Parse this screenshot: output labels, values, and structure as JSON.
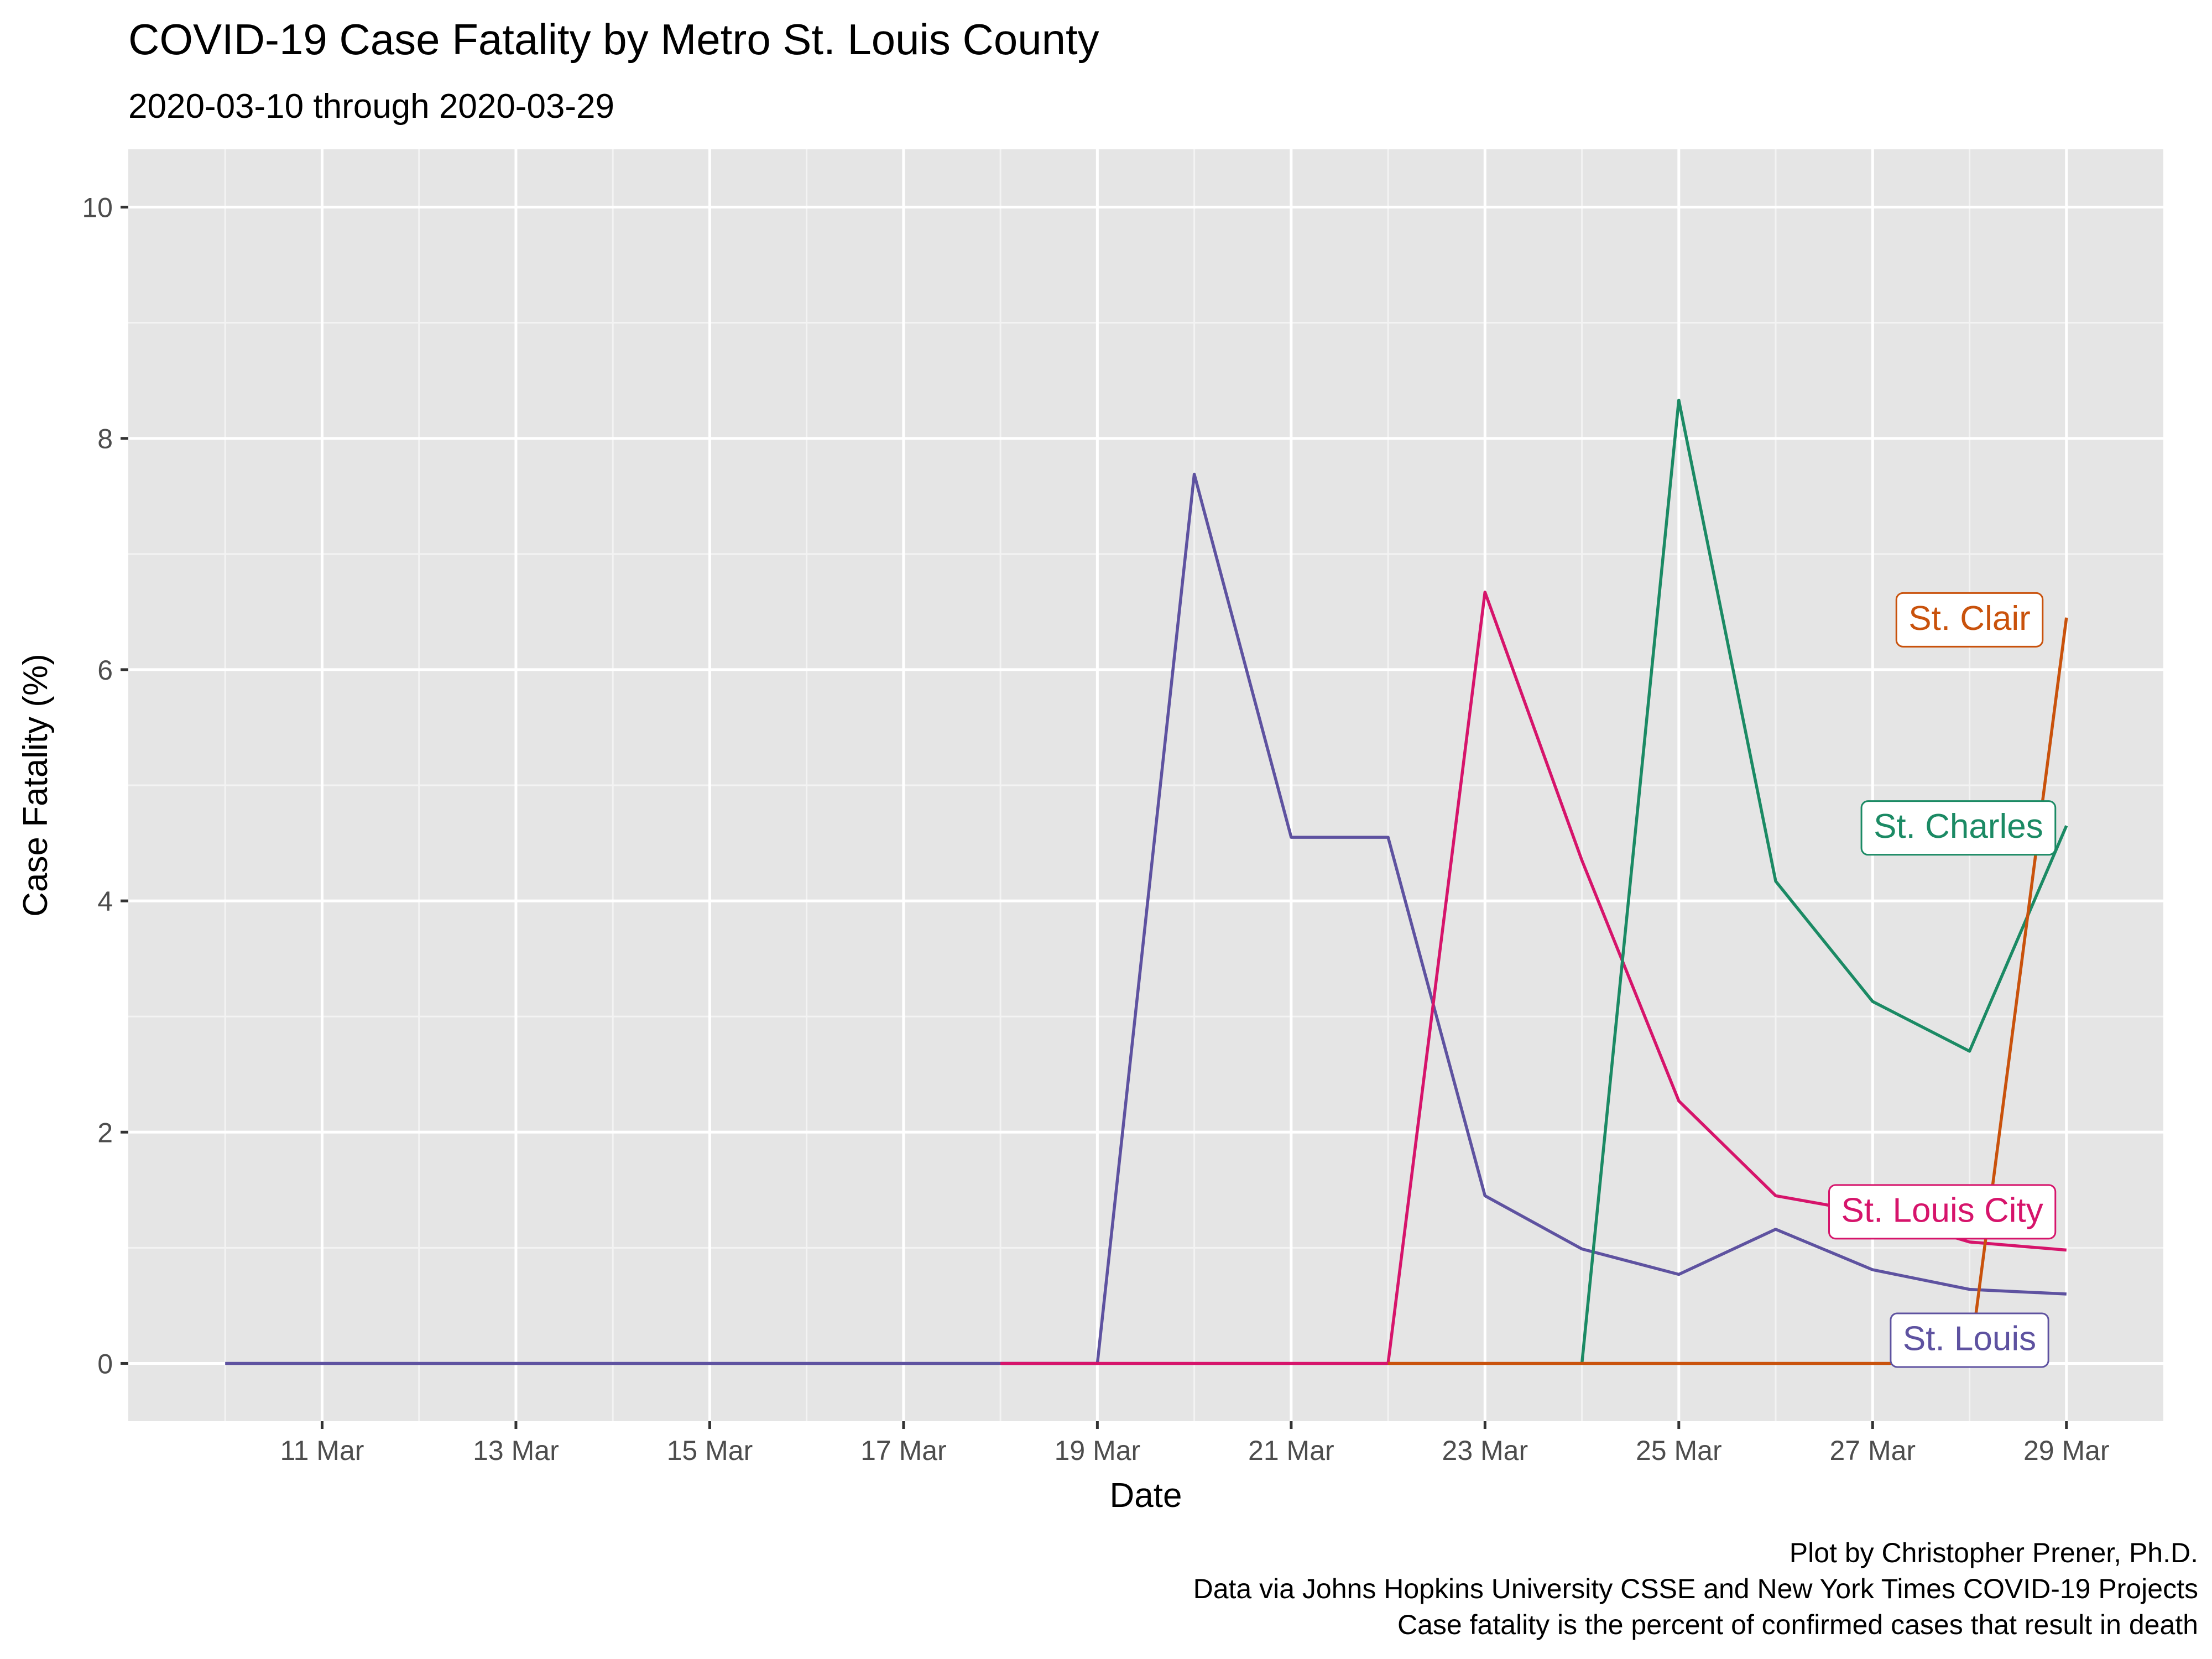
{
  "chart_data": {
    "type": "line",
    "title": "COVID-19 Case Fatality by Metro St. Louis County",
    "subtitle": "2020-03-10 through 2020-03-29",
    "xlabel": "Date",
    "ylabel": "Case Fatality (%)",
    "xlim": [
      "2020-03-09",
      "2020-03-30"
    ],
    "ylim": [
      -0.5,
      10.5
    ],
    "x_ticks": [
      {
        "date": "2020-03-11",
        "label": "11 Mar"
      },
      {
        "date": "2020-03-13",
        "label": "13 Mar"
      },
      {
        "date": "2020-03-15",
        "label": "15 Mar"
      },
      {
        "date": "2020-03-17",
        "label": "17 Mar"
      },
      {
        "date": "2020-03-19",
        "label": "19 Mar"
      },
      {
        "date": "2020-03-21",
        "label": "21 Mar"
      },
      {
        "date": "2020-03-23",
        "label": "23 Mar"
      },
      {
        "date": "2020-03-25",
        "label": "25 Mar"
      },
      {
        "date": "2020-03-27",
        "label": "27 Mar"
      },
      {
        "date": "2020-03-29",
        "label": "29 Mar"
      }
    ],
    "y_ticks": [
      0,
      2,
      4,
      6,
      8,
      10
    ],
    "grid": true,
    "legend": "none",
    "series": [
      {
        "name": "St. Louis",
        "color": "#5e52a0",
        "points": [
          [
            "2020-03-10",
            0
          ],
          [
            "2020-03-11",
            0
          ],
          [
            "2020-03-12",
            0
          ],
          [
            "2020-03-13",
            0
          ],
          [
            "2020-03-14",
            0
          ],
          [
            "2020-03-15",
            0
          ],
          [
            "2020-03-16",
            0
          ],
          [
            "2020-03-17",
            0
          ],
          [
            "2020-03-18",
            0
          ],
          [
            "2020-03-19",
            0
          ],
          [
            "2020-03-20",
            7.69
          ],
          [
            "2020-03-21",
            4.55
          ],
          [
            "2020-03-22",
            4.55
          ],
          [
            "2020-03-23",
            1.45
          ],
          [
            "2020-03-24",
            0.99
          ],
          [
            "2020-03-25",
            0.77
          ],
          [
            "2020-03-26",
            1.16
          ],
          [
            "2020-03-27",
            0.81
          ],
          [
            "2020-03-28",
            0.64
          ],
          [
            "2020-03-29",
            0.6
          ]
        ]
      },
      {
        "name": "St. Louis City",
        "color": "#d6146b",
        "points": [
          [
            "2020-03-18",
            0
          ],
          [
            "2020-03-19",
            0
          ],
          [
            "2020-03-20",
            0
          ],
          [
            "2020-03-21",
            0
          ],
          [
            "2020-03-22",
            0
          ],
          [
            "2020-03-23",
            6.67
          ],
          [
            "2020-03-24",
            4.35
          ],
          [
            "2020-03-25",
            2.27
          ],
          [
            "2020-03-26",
            1.45
          ],
          [
            "2020-03-27",
            1.3
          ],
          [
            "2020-03-28",
            1.05
          ],
          [
            "2020-03-29",
            0.98
          ]
        ]
      },
      {
        "name": "St. Charles",
        "color": "#1b8a64",
        "points": [
          [
            "2020-03-24",
            0
          ],
          [
            "2020-03-25",
            8.33
          ],
          [
            "2020-03-26",
            4.17
          ],
          [
            "2020-03-27",
            3.13
          ],
          [
            "2020-03-28",
            2.7
          ],
          [
            "2020-03-29",
            4.65
          ]
        ]
      },
      {
        "name": "St. Clair",
        "color": "#c9520c",
        "points": [
          [
            "2020-03-22",
            0
          ],
          [
            "2020-03-23",
            0
          ],
          [
            "2020-03-24",
            0
          ],
          [
            "2020-03-25",
            0
          ],
          [
            "2020-03-26",
            0
          ],
          [
            "2020-03-27",
            0
          ],
          [
            "2020-03-28",
            0
          ],
          [
            "2020-03-29",
            6.45
          ]
        ]
      }
    ],
    "annotations": [
      {
        "text": "St. Clair",
        "series": "St. Clair",
        "x": "2020-03-28",
        "y": 6.45
      },
      {
        "text": "St. Charles",
        "series": "St. Charles",
        "x": "2020-03-28",
        "y": 4.65
      },
      {
        "text": "St. Louis City",
        "series": "St. Louis City",
        "x": "2020-03-28",
        "y": 1.33
      },
      {
        "text": "St. Louis",
        "series": "St. Louis",
        "x": "2020-03-28",
        "y": 0.22
      }
    ],
    "caption": [
      "Plot by Christopher Prener, Ph.D.",
      "Data via Johns Hopkins University CSSE and New York Times COVID-19 Projects",
      "Case fatality is the percent of confirmed cases that result in death"
    ]
  }
}
